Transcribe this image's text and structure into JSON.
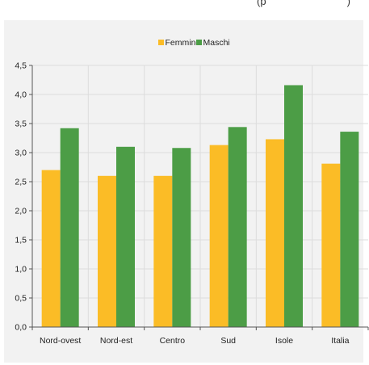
{
  "header_fragment": "(p",
  "header_fragment_end": ")",
  "chart_data": {
    "type": "bar",
    "categories": [
      "Nord-ovest",
      "Nord-est",
      "Centro",
      "Sud",
      "Isole",
      "Italia"
    ],
    "series": [
      {
        "name": "Femmine",
        "color": "#fbbc26",
        "values": [
          2.7,
          2.6,
          2.6,
          3.13,
          3.23,
          2.81
        ]
      },
      {
        "name": "Maschi",
        "color": "#4c9d46",
        "values": [
          3.42,
          3.1,
          3.08,
          3.44,
          4.16,
          3.36
        ]
      }
    ],
    "title": "",
    "xlabel": "",
    "ylabel": "",
    "ylim": [
      0,
      4.5
    ],
    "yticks": [
      "0,0",
      "0,5",
      "1,0",
      "1,5",
      "2,0",
      "2,5",
      "3,0",
      "3,5",
      "4,0",
      "4,5"
    ],
    "grid": true,
    "legend_position": "top-center"
  }
}
